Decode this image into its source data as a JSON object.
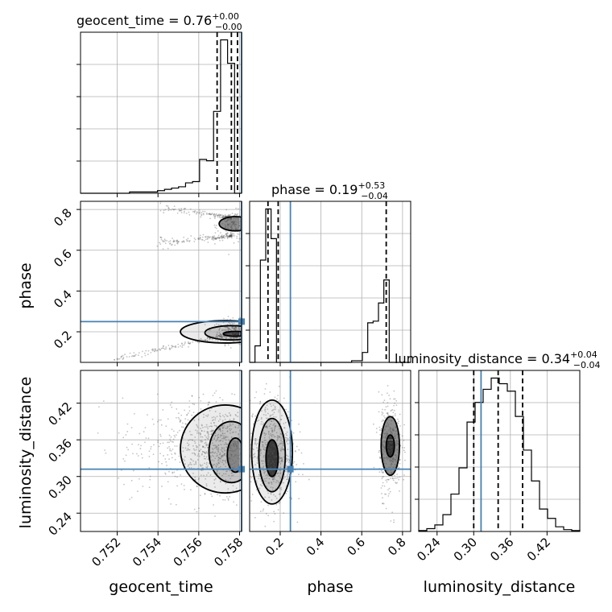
{
  "chart_data": {
    "type": "corner",
    "parameters": [
      "geocent_time",
      "phase",
      "luminosity_distance"
    ],
    "axis_labels": {
      "geocent_time": "geocent_time",
      "phase": "phase",
      "luminosity_distance": "luminosity_distance"
    },
    "ranges": {
      "geocent_time": [
        0.7502,
        0.7581
      ],
      "phase": [
        0.05,
        0.84
      ],
      "luminosity_distance": [
        0.21,
        0.4736
      ]
    },
    "ticks": {
      "geocent_time": [
        {
          "value": 0.752,
          "label": "0.752"
        },
        {
          "value": 0.754,
          "label": "0.754"
        },
        {
          "value": 0.756,
          "label": "0.756"
        },
        {
          "value": 0.758,
          "label": "0.758"
        }
      ],
      "phase": [
        {
          "value": 0.2,
          "label": "0.2"
        },
        {
          "value": 0.4,
          "label": "0.4"
        },
        {
          "value": 0.6,
          "label": "0.6"
        },
        {
          "value": 0.8,
          "label": "0.8"
        }
      ],
      "luminosity_distance": [
        {
          "value": 0.24,
          "label": "0.24"
        },
        {
          "value": 0.3,
          "label": "0.30"
        },
        {
          "value": 0.36,
          "label": "0.36"
        },
        {
          "value": 0.42,
          "label": "0.42"
        }
      ]
    },
    "titles": [
      {
        "param": "geocent_time",
        "main": "geocent_time = 0.76",
        "plus": "+0.00",
        "minus": "−0.00"
      },
      {
        "param": "phase",
        "main": "phase = 0.19",
        "plus": "+0.53",
        "minus": "−0.04"
      },
      {
        "param": "luminosity_distance",
        "main": "luminosity_distance = 0.34",
        "plus": "+0.04",
        "minus": "−0.04"
      }
    ],
    "truths": {
      "geocent_time": 0.7581,
      "phase": 0.25,
      "luminosity_distance": 0.312
    },
    "quantiles": {
      "geocent_time": [
        0.7569,
        0.7576,
        0.7579
      ],
      "phase": [
        0.14,
        0.19,
        0.72
      ],
      "luminosity_distance": [
        0.3,
        0.34,
        0.38
      ]
    },
    "histograms": {
      "geocent_time": {
        "range": [
          0.7502,
          0.7581
        ],
        "counts": [
          0,
          0,
          0,
          0,
          0,
          0,
          0,
          1,
          1,
          1,
          1,
          2,
          3,
          4,
          5,
          8,
          9,
          26,
          25,
          63,
          118,
          100,
          0
        ]
      },
      "phase": {
        "range": [
          0.05,
          0.84
        ],
        "counts": [
          0,
          10,
          62,
          93,
          75,
          0,
          0,
          0,
          0,
          0,
          0,
          0,
          0,
          0,
          0,
          0,
          0,
          0,
          0,
          1,
          1,
          6,
          24,
          25,
          36,
          50,
          0,
          0,
          0,
          0
        ]
      },
      "luminosity_distance": {
        "range": [
          0.21,
          0.4736
        ],
        "counts": [
          1,
          3,
          7,
          18,
          40,
          68,
          117,
          138,
          152,
          164,
          158,
          150,
          123,
          87,
          54,
          24,
          14,
          5,
          2,
          1
        ]
      }
    },
    "contours_2d": {
      "phase_vs_geocent_time": [
        {
          "cx": 0.7578,
          "cy": 0.19,
          "rx": 0.0006,
          "ry": 0.012
        },
        {
          "cx": 0.7576,
          "cy": 0.195,
          "rx": 0.0013,
          "ry": 0.035
        },
        {
          "cx": 0.7573,
          "cy": 0.2,
          "rx": 0.0022,
          "ry": 0.055
        },
        {
          "cx": 0.7578,
          "cy": 0.73,
          "rx": 0.0008,
          "ry": 0.035
        }
      ],
      "luminosity_distance_vs_geocent_time": [
        {
          "cx": 0.7578,
          "cy": 0.335,
          "rx": 0.0004,
          "ry": 0.028
        },
        {
          "cx": 0.7576,
          "cy": 0.34,
          "rx": 0.0011,
          "ry": 0.05
        },
        {
          "cx": 0.7573,
          "cy": 0.345,
          "rx": 0.0022,
          "ry": 0.072
        }
      ],
      "luminosity_distance_vs_phase": [
        {
          "cx": 0.16,
          "cy": 0.33,
          "rx": 0.03,
          "ry": 0.03
        },
        {
          "cx": 0.16,
          "cy": 0.335,
          "rx": 0.065,
          "ry": 0.06
        },
        {
          "cx": 0.16,
          "cy": 0.34,
          "rx": 0.1,
          "ry": 0.085
        },
        {
          "cx": 0.74,
          "cy": 0.35,
          "rx": 0.02,
          "ry": 0.018
        },
        {
          "cx": 0.74,
          "cy": 0.35,
          "rx": 0.045,
          "ry": 0.048
        }
      ]
    }
  }
}
